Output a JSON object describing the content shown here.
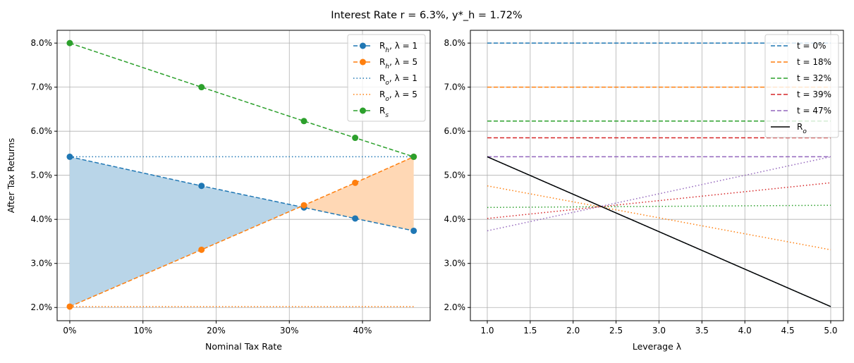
{
  "title": "Interest Rate r = 6.3%, y*_h = 1.72%",
  "chart_data": [
    {
      "type": "line",
      "xlabel": "Nominal Tax Rate",
      "ylabel": "After Tax Returns",
      "xlim": [
        -1.73,
        49.25
      ],
      "ylim": [
        1.7,
        8.29
      ],
      "xticks": [
        0,
        10,
        20,
        30,
        40
      ],
      "xtick_labels": [
        "0%",
        "10%",
        "20%",
        "30%",
        "40%"
      ],
      "yticks": [
        2,
        3,
        4,
        5,
        6,
        7,
        8
      ],
      "ytick_labels": [
        "2.0%",
        "3.0%",
        "4.0%",
        "5.0%",
        "6.0%",
        "7.0%",
        "8.0%"
      ],
      "grid": true,
      "legend_position": "top-right",
      "x": [
        0,
        18,
        32,
        39,
        47
      ],
      "series": [
        {
          "name": "R_h, λ = 1",
          "values": [
            5.42,
            4.76,
            4.27,
            4.02,
            3.74
          ],
          "color": "#1f77b4",
          "style": "dashed",
          "marker": true
        },
        {
          "name": "R_h, λ = 5",
          "values": [
            2.02,
            3.31,
            4.32,
            4.83,
            5.42
          ],
          "color": "#ff7f0e",
          "style": "dashed",
          "marker": true
        },
        {
          "name": "R_o, λ = 1",
          "values": [
            5.42,
            5.42,
            5.42,
            5.42,
            5.42
          ],
          "color": "#1f77b4",
          "style": "dotted",
          "marker": false
        },
        {
          "name": "R_o, λ = 5",
          "values": [
            2.02,
            2.02,
            2.02,
            2.02,
            2.02
          ],
          "color": "#ff7f0e",
          "style": "dotted",
          "marker": false
        },
        {
          "name": "R_s",
          "values": [
            8.0,
            7.0,
            6.23,
            5.85,
            5.42
          ],
          "color": "#2ca02c",
          "style": "dashed",
          "marker": true
        }
      ],
      "fill_between": {
        "series": [
          "R_h, λ = 1",
          "R_h, λ = 5"
        ],
        "colors": [
          "#b9d5e8",
          "#ffd8b5"
        ]
      }
    },
    {
      "type": "line",
      "xlabel": "Leverage λ",
      "ylabel": "",
      "xlim": [
        0.803,
        5.148
      ],
      "ylim": [
        1.7,
        8.29
      ],
      "xticks": [
        1,
        1.5,
        2,
        2.5,
        3,
        3.5,
        4,
        4.5,
        5
      ],
      "xtick_labels": [
        "1.0",
        "1.5",
        "2.0",
        "2.5",
        "3.0",
        "3.5",
        "4.0",
        "4.5",
        "5.0"
      ],
      "yticks": [
        2,
        3,
        4,
        5,
        6,
        7,
        8
      ],
      "ytick_labels": [
        "2.0%",
        "3.0%",
        "4.0%",
        "5.0%",
        "6.0%",
        "7.0%",
        "8.0%"
      ],
      "grid": true,
      "legend_position": "top-right",
      "x": [
        1,
        5
      ],
      "series": [
        {
          "name": "t = 0%",
          "values": [
            8.0,
            8.0
          ],
          "color": "#1f77b4",
          "style": "dashed",
          "dotted_values": [
            5.42,
            2.02
          ]
        },
        {
          "name": "t = 18%",
          "values": [
            7.0,
            7.0
          ],
          "color": "#ff7f0e",
          "style": "dashed",
          "dotted_values": [
            4.76,
            3.31
          ]
        },
        {
          "name": "t = 32%",
          "values": [
            6.23,
            6.23
          ],
          "color": "#2ca02c",
          "style": "dashed",
          "dotted_values": [
            4.27,
            4.32
          ]
        },
        {
          "name": "t = 39%",
          "values": [
            5.85,
            5.85
          ],
          "color": "#d62728",
          "style": "dashed",
          "dotted_values": [
            4.02,
            4.83
          ]
        },
        {
          "name": "t = 47%",
          "values": [
            5.42,
            5.42
          ],
          "color": "#9467bd",
          "style": "dashed",
          "dotted_values": [
            3.74,
            5.42
          ]
        },
        {
          "name": "R_o",
          "values": [
            5.42,
            2.02
          ],
          "color": "#000000",
          "style": "solid"
        }
      ]
    }
  ]
}
